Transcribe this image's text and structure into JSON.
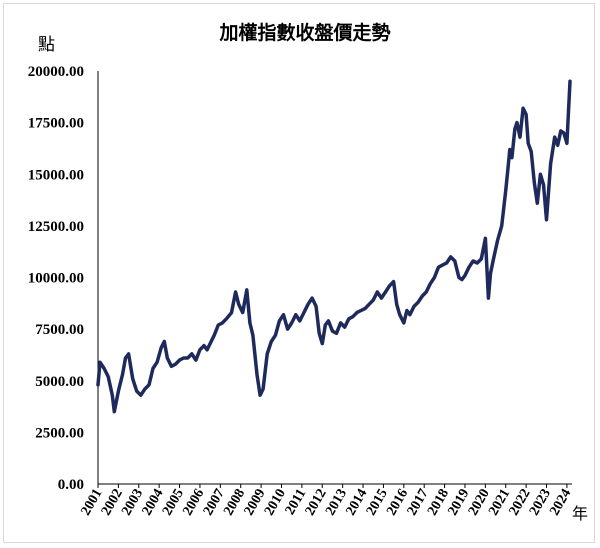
{
  "chart_data": {
    "type": "line",
    "title": "加權指數收盤價走勢",
    "ylabel": "點",
    "xlabel": "年",
    "ylim": [
      0,
      20000
    ],
    "yticks": [
      "0.00",
      "2500.00",
      "5000.00",
      "7500.00",
      "10000.00",
      "12500.00",
      "15000.00",
      "17500.00",
      "20000.00"
    ],
    "categories": [
      "2001",
      "2002",
      "2003",
      "2004",
      "2005",
      "2006",
      "2007",
      "2008",
      "2009",
      "2010",
      "2011",
      "2012",
      "2013",
      "2014",
      "2015",
      "2016",
      "2017",
      "2018",
      "2019",
      "2020",
      "2021",
      "2022",
      "2023",
      "2024"
    ],
    "grid": false,
    "legend": "none",
    "line_color": "#1f2a5c",
    "series": [
      {
        "x": [
          2001.0,
          2001.1,
          2001.3,
          2001.5,
          2001.7,
          2001.8,
          2002.0,
          2002.2,
          2002.35,
          2002.5,
          2002.7,
          2002.9,
          2003.1,
          2003.3,
          2003.5,
          2003.7,
          2003.9,
          2004.1,
          2004.25,
          2004.4,
          2004.6,
          2004.8,
          2005.0,
          2005.2,
          2005.4,
          2005.6,
          2005.8,
          2006.0,
          2006.2,
          2006.35,
          2006.5,
          2006.7,
          2006.9,
          2007.1,
          2007.3,
          2007.55,
          2007.75,
          2007.9,
          2008.1,
          2008.3,
          2008.45,
          2008.6,
          2008.8,
          2008.95,
          2009.1,
          2009.3,
          2009.5,
          2009.7,
          2009.9,
          2010.1,
          2010.3,
          2010.5,
          2010.7,
          2010.9,
          2011.1,
          2011.3,
          2011.5,
          2011.7,
          2011.85,
          2012.0,
          2012.15,
          2012.3,
          2012.5,
          2012.7,
          2012.9,
          2013.1,
          2013.3,
          2013.5,
          2013.7,
          2013.9,
          2014.1,
          2014.3,
          2014.5,
          2014.7,
          2014.9,
          2015.1,
          2015.3,
          2015.5,
          2015.65,
          2015.8,
          2016.0,
          2016.15,
          2016.3,
          2016.5,
          2016.7,
          2016.9,
          2017.1,
          2017.3,
          2017.5,
          2017.7,
          2017.9,
          2018.1,
          2018.3,
          2018.5,
          2018.7,
          2018.85,
          2019.0,
          2019.2,
          2019.4,
          2019.6,
          2019.8,
          2020.0,
          2020.15,
          2020.25,
          2020.4,
          2020.6,
          2020.8,
          2021.0,
          2021.1,
          2021.2,
          2021.3,
          2021.45,
          2021.55,
          2021.7,
          2021.85,
          2022.0,
          2022.1,
          2022.25,
          2022.4,
          2022.55,
          2022.7,
          2022.85,
          2023.0,
          2023.2,
          2023.4,
          2023.55,
          2023.7,
          2023.85,
          2024.0,
          2024.15
        ],
        "values": [
          4800,
          5900,
          5600,
          5200,
          4300,
          3500,
          4500,
          5300,
          6100,
          6300,
          5100,
          4500,
          4300,
          4600,
          4800,
          5600,
          5900,
          6600,
          6900,
          6100,
          5700,
          5800,
          6000,
          6100,
          6100,
          6300,
          6000,
          6500,
          6700,
          6500,
          6800,
          7200,
          7700,
          7800,
          8000,
          8300,
          9300,
          8700,
          8300,
          9400,
          7800,
          7200,
          5300,
          4300,
          4600,
          6300,
          6900,
          7200,
          7900,
          8200,
          7500,
          7800,
          8200,
          7900,
          8300,
          8700,
          9000,
          8600,
          7300,
          6800,
          7700,
          7900,
          7400,
          7300,
          7800,
          7600,
          8000,
          8100,
          8300,
          8400,
          8500,
          8700,
          8900,
          9300,
          9000,
          9300,
          9600,
          9800,
          8700,
          8200,
          7800,
          8400,
          8200,
          8600,
          8800,
          9100,
          9300,
          9700,
          10000,
          10500,
          10600,
          10700,
          11000,
          10800,
          10000,
          9900,
          10100,
          10500,
          10800,
          10700,
          10900,
          11900,
          9000,
          10200,
          10900,
          11800,
          12500,
          14200,
          15200,
          16200,
          15800,
          17200,
          17500,
          16800,
          18200,
          17900,
          16500,
          16100,
          14600,
          13600,
          15000,
          14500,
          12800,
          15500,
          16800,
          16400,
          17100,
          17000,
          16500,
          19500
        ]
      }
    ]
  }
}
